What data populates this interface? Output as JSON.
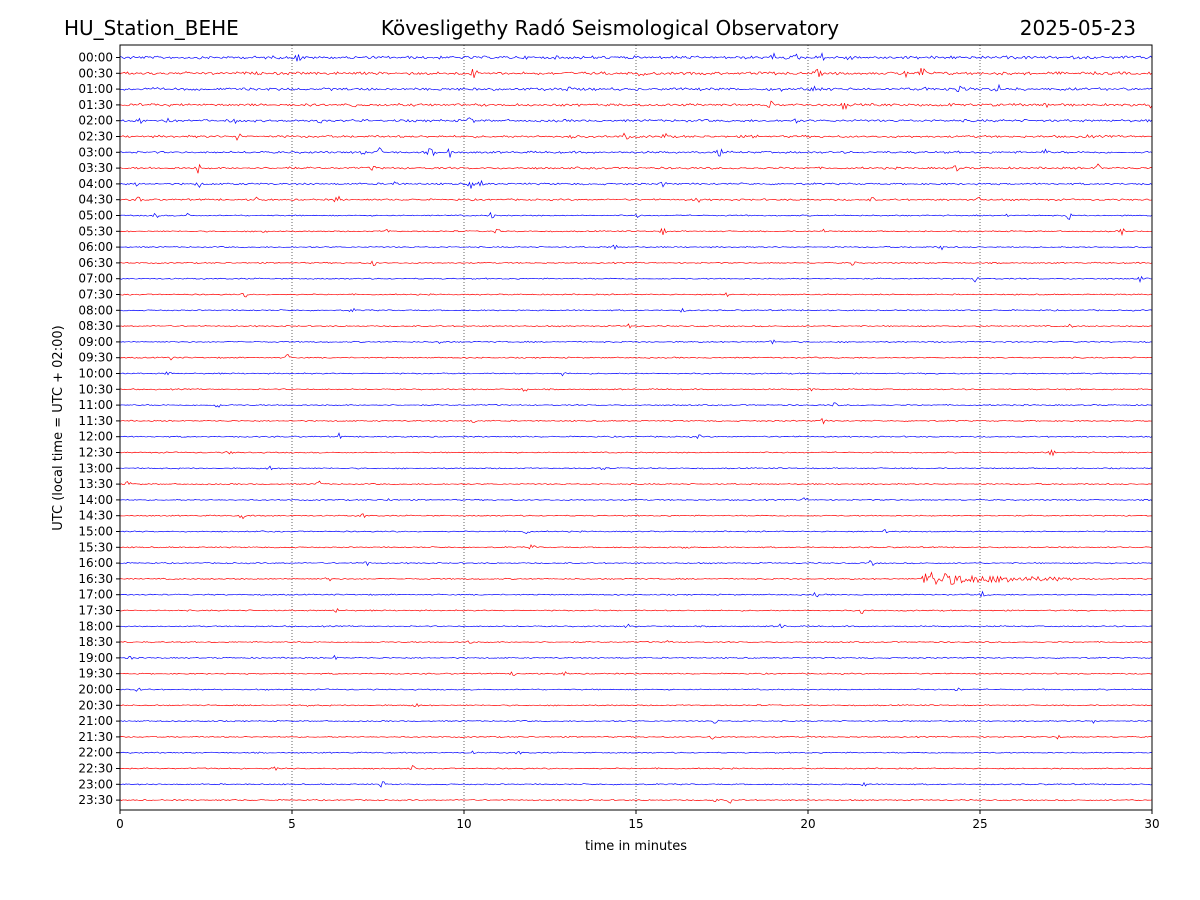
{
  "header": {
    "station": "HU_Station_BEHE",
    "observatory": "Kövesligethy Radó Seismological Observatory",
    "date": "2025-05-23"
  },
  "chart_data": {
    "type": "line",
    "title": "Kövesligethy Radó Seismological Observatory",
    "xlabel": "time in minutes",
    "ylabel": "UTC (local time = UTC + 02:00)",
    "xlim": [
      0,
      30
    ],
    "xticks": [
      "0",
      "5",
      "10",
      "15",
      "20",
      "25",
      "30"
    ],
    "grid": "vertical dotted lines at x ticks",
    "row_labels": [
      "00:00",
      "00:30",
      "01:00",
      "01:30",
      "02:00",
      "02:30",
      "03:00",
      "03:30",
      "04:00",
      "04:30",
      "05:00",
      "05:30",
      "06:00",
      "06:30",
      "07:00",
      "07:30",
      "08:00",
      "08:30",
      "09:00",
      "09:30",
      "10:00",
      "10:30",
      "11:00",
      "11:30",
      "12:00",
      "12:30",
      "13:00",
      "13:30",
      "14:00",
      "14:30",
      "15:00",
      "15:30",
      "16:00",
      "16:30",
      "17:00",
      "17:30",
      "18:00",
      "18:30",
      "19:00",
      "19:30",
      "20:00",
      "20:30",
      "21:00",
      "21:30",
      "22:00",
      "22:30",
      "23:00",
      "23:30"
    ],
    "colors": {
      "even_rows": "#0000ff",
      "odd_rows": "#ff0000"
    },
    "events": [
      {
        "row": "16:30",
        "start_minute": 23.3,
        "end_minute": 27.8,
        "peak_minute": 23.5
      }
    ]
  }
}
